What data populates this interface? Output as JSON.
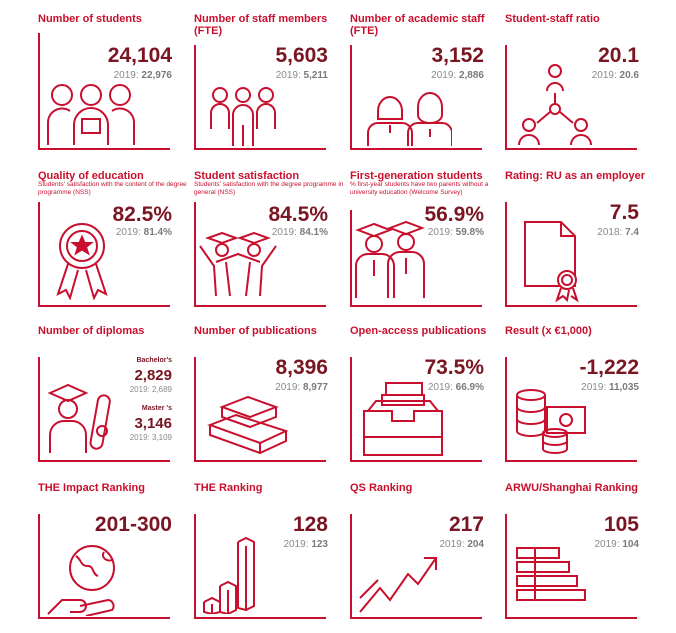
{
  "colors": {
    "accent": "#c8102e",
    "value": "#7a1522",
    "muted": "#8a8a8a"
  },
  "cards": [
    {
      "title": "Number of students",
      "value": "24,104",
      "prev_label": "2019:",
      "prev_value": "22,976",
      "icon": "students-group-icon"
    },
    {
      "title": "Number of staff members (FTE)",
      "value": "5,603",
      "prev_label": "2019:",
      "prev_value": "5,211",
      "icon": "staff-group-icon"
    },
    {
      "title": "Number of academic staff (FTE)",
      "value": "3,152",
      "prev_label": "2019:",
      "prev_value": "2,886",
      "icon": "academic-staff-icon"
    },
    {
      "title": "Student-staff ratio",
      "value": "20.1",
      "prev_label": "2019:",
      "prev_value": "20.6",
      "icon": "ratio-network-icon"
    },
    {
      "title": "Quality of education",
      "subtitle": "Students' satisfaction with the content of the degree programme (NSS)",
      "value": "82.5%",
      "prev_label": "2019:",
      "prev_value": "81.4%",
      "icon": "award-rosette-icon"
    },
    {
      "title": "Student satisfaction",
      "subtitle": "Students' satisfaction with the degree programme in general (NSS)",
      "value": "84.5%",
      "prev_label": "2019:",
      "prev_value": "84.1%",
      "icon": "celebrating-graduates-icon"
    },
    {
      "title": "First-generation students",
      "subtitle": "% first-year students have two parents without a university education (Welcome Survey)",
      "value": "56.9%",
      "prev_label": "2019:",
      "prev_value": "59.8%",
      "icon": "graduates-icon"
    },
    {
      "title": "Rating: RU as an employer",
      "value": "7.5",
      "prev_label": "2018:",
      "prev_value": "7.4",
      "icon": "certificate-icon"
    },
    {
      "title": "Number of diplomas",
      "bachelor_label": "Bachelor's",
      "bachelor_value": "2,829",
      "bachelor_prev": "2019: 2,689",
      "master_label": "Master 's",
      "master_value": "3,146",
      "master_prev": "2019: 3,109",
      "icon": "diploma-graduate-icon"
    },
    {
      "title": "Number of publications",
      "value": "8,396",
      "prev_label": "2019:",
      "prev_value": "8,977",
      "icon": "books-stack-icon"
    },
    {
      "title": "Open-access publications",
      "value": "73.5%",
      "prev_label": "2019:",
      "prev_value": "66.9%",
      "icon": "file-tray-icon"
    },
    {
      "title": "Result (x €1,000)",
      "value": "-1,222",
      "prev_label": "2019:",
      "prev_value": "11,035",
      "icon": "coins-money-icon"
    },
    {
      "title": "THE Impact Ranking",
      "value": "201-300",
      "icon": "globe-hand-icon"
    },
    {
      "title": "THE Ranking",
      "value": "128",
      "prev_label": "2019:",
      "prev_value": "123",
      "icon": "bar-blocks-icon"
    },
    {
      "title": "QS Ranking",
      "value": "217",
      "prev_label": "2019:",
      "prev_value": "204",
      "icon": "trend-arrow-icon"
    },
    {
      "title": "ARWU/Shanghai Ranking",
      "value": "105",
      "prev_label": "2019:",
      "prev_value": "104",
      "icon": "horizontal-bars-icon"
    }
  ]
}
